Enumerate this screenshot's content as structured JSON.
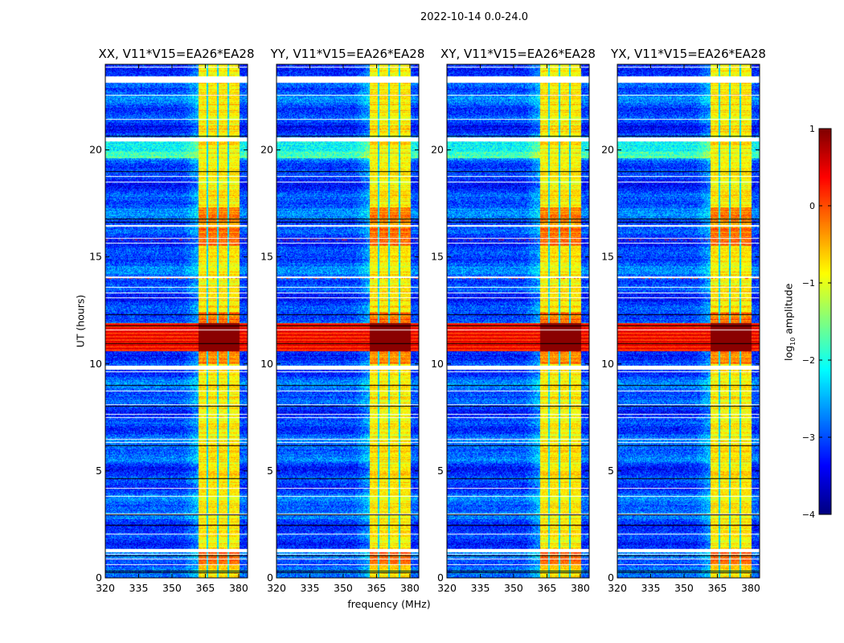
{
  "figure": {
    "suptitle": "2022-10-14 0.0-24.0",
    "xlabel": "frequency (MHz)",
    "ylabel": "UT (hours)",
    "colorbar_label_prefix": "log",
    "colorbar_label_sub": "10",
    "colorbar_label_suffix": " amplitude"
  },
  "chart_data": {
    "type": "heatmap",
    "colormap": "jet",
    "x_range": [
      320,
      384
    ],
    "y_range": [
      0,
      24
    ],
    "xticks": [
      320,
      335,
      350,
      365,
      380
    ],
    "yticks": [
      0,
      5,
      10,
      15,
      20
    ],
    "color_range": [
      -4,
      1
    ],
    "colorbar_ticks": [
      1,
      0,
      -1,
      -2,
      -3,
      -4
    ],
    "panels": [
      {
        "title": "XX, V11*V15=EA26*EA28",
        "pol": "XX"
      },
      {
        "title": "YY, V11*V15=EA26*EA28",
        "pol": "YY"
      },
      {
        "title": "XY, V11*V15=EA26*EA28",
        "pol": "XY"
      },
      {
        "title": "YX, V11*V15=EA26*EA28",
        "pol": "YX"
      }
    ],
    "features": {
      "background_level": -3.0,
      "rfi_band_mhz": [
        362,
        380.5
      ],
      "rfi_band_level": -0.8,
      "rfi_subband_gaps_mhz": [
        365.8,
        370.6,
        375.4
      ],
      "broadband_rfi_hours": [
        10.6,
        11.9
      ],
      "broadband_rfi_level": 0.3,
      "strong_band_hours": [
        [
          15.5,
          17.3
        ],
        [
          10.0,
          12.4
        ],
        [
          0.6,
          1.3
        ]
      ],
      "enhanced_background_hours": [
        [
          19.6,
          20.4
        ]
      ],
      "flagged_hours": [
        [
          23.15,
          23.45
        ],
        [
          20.4,
          20.6
        ],
        [
          14.0,
          14.1
        ],
        [
          9.75,
          9.9
        ],
        [
          1.2,
          1.35
        ]
      ]
    }
  }
}
